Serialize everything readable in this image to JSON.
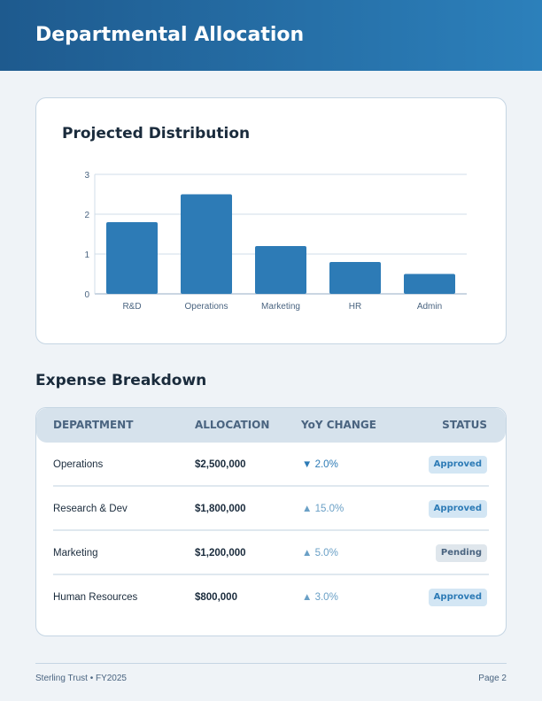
{
  "header": {
    "title": "Departmental Allocation"
  },
  "chart_card": {
    "title": "Projected Distribution"
  },
  "chart_data": {
    "type": "bar",
    "title": "Projected Distribution",
    "categories": [
      "R&D",
      "Operations",
      "Marketing",
      "HR",
      "Admin"
    ],
    "values": [
      1.8,
      2.5,
      1.2,
      0.8,
      0.5
    ],
    "ylim": [
      0,
      3
    ],
    "yticks": [
      0,
      1,
      2,
      3
    ],
    "grid": true,
    "color": "#2d7bb6"
  },
  "table": {
    "title": "Expense Breakdown",
    "headers": [
      "DEPARTMENT",
      "ALLOCATION",
      "YoY CHANGE",
      "STATUS"
    ],
    "rows": [
      {
        "department": "Operations",
        "allocation": "$2,500,000",
        "yoy": "▼ 2.0%",
        "direction": "down",
        "status": "Approved"
      },
      {
        "department": "Research & Dev",
        "allocation": "$1,800,000",
        "yoy": "▲ 15.0%",
        "direction": "up",
        "status": "Approved"
      },
      {
        "department": "Marketing",
        "allocation": "$1,200,000",
        "yoy": "▲ 5.0%",
        "direction": "up",
        "status": "Pending"
      },
      {
        "department": "Human Resources",
        "allocation": "$800,000",
        "yoy": "▲ 3.0%",
        "direction": "up",
        "status": "Approved"
      }
    ]
  },
  "footer": {
    "left": "Sterling Trust • FY2025",
    "right": "Page 2"
  }
}
